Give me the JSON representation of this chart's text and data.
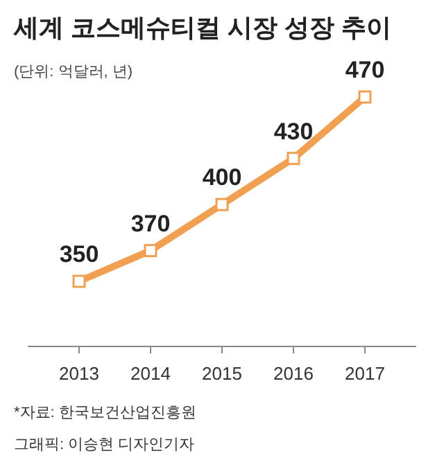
{
  "chart_data": {
    "type": "line",
    "title": "세계 코스메슈티컬 시장 성장 추이",
    "subtitle": "(단위: 억달러, 년)",
    "categories": [
      "2013",
      "2014",
      "2015",
      "2016",
      "2017"
    ],
    "series": [
      {
        "color": "#f0a050",
        "values": [
          350,
          370,
          400,
          430,
          470
        ]
      }
    ],
    "data_labels": true,
    "marker": "square",
    "line_style": "solid",
    "grid": false,
    "annotations": [
      "*자료: 한국보건산업진흥원",
      "그래픽: 이승현 디자인기자"
    ]
  }
}
